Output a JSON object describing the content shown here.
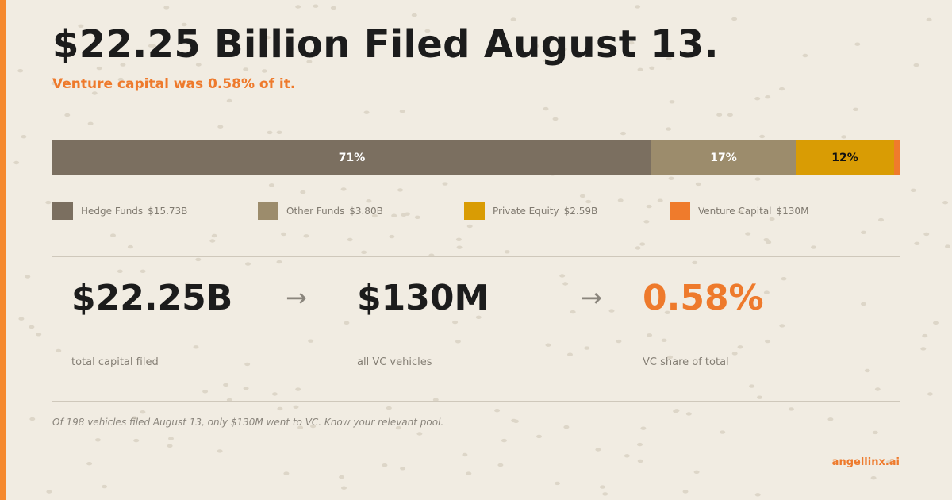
{
  "header": {
    "title": "$22.25 Billion Filed August 13.",
    "subtitle": "Venture capital was 0.58% of it."
  },
  "chart_data": {
    "type": "bar",
    "orientation": "horizontal-stacked",
    "categories": [
      "Hedge Funds",
      "Other Funds",
      "Private Equity",
      "Venture Capital"
    ],
    "values": [
      15.73,
      3.8,
      2.59,
      0.13
    ],
    "units": "$B",
    "segment_labels": [
      "71%",
      "17%",
      "12%",
      ""
    ],
    "colors": [
      "#7b6f60",
      "#9c8c6c",
      "#d99c04",
      "#ef7b2c"
    ],
    "legend": {
      "placement": "bottom",
      "items": [
        {
          "label": "Hedge Funds",
          "value": "$15.73B"
        },
        {
          "label": "Other Funds",
          "value": "$3.80B"
        },
        {
          "label": "Private Equity",
          "value": "$2.59B"
        },
        {
          "label": "Venture Capital",
          "value": "$130M"
        }
      ]
    }
  },
  "stats": [
    {
      "value": "$22.25B",
      "caption": "total capital filed"
    },
    {
      "value": "$130M",
      "caption": "all VC vehicles"
    },
    {
      "value": "0.58%",
      "caption": "VC share of total"
    }
  ],
  "arrows": [
    "→",
    "→"
  ],
  "footnote": "Of 198 vehicles filed August 13, only $130M went to VC. Know your relevant pool.",
  "brand": "angellinx.ai",
  "colors": {
    "background": "#f1ece2",
    "accent": "#ee7a2c",
    "text": "#1c1c1c"
  }
}
